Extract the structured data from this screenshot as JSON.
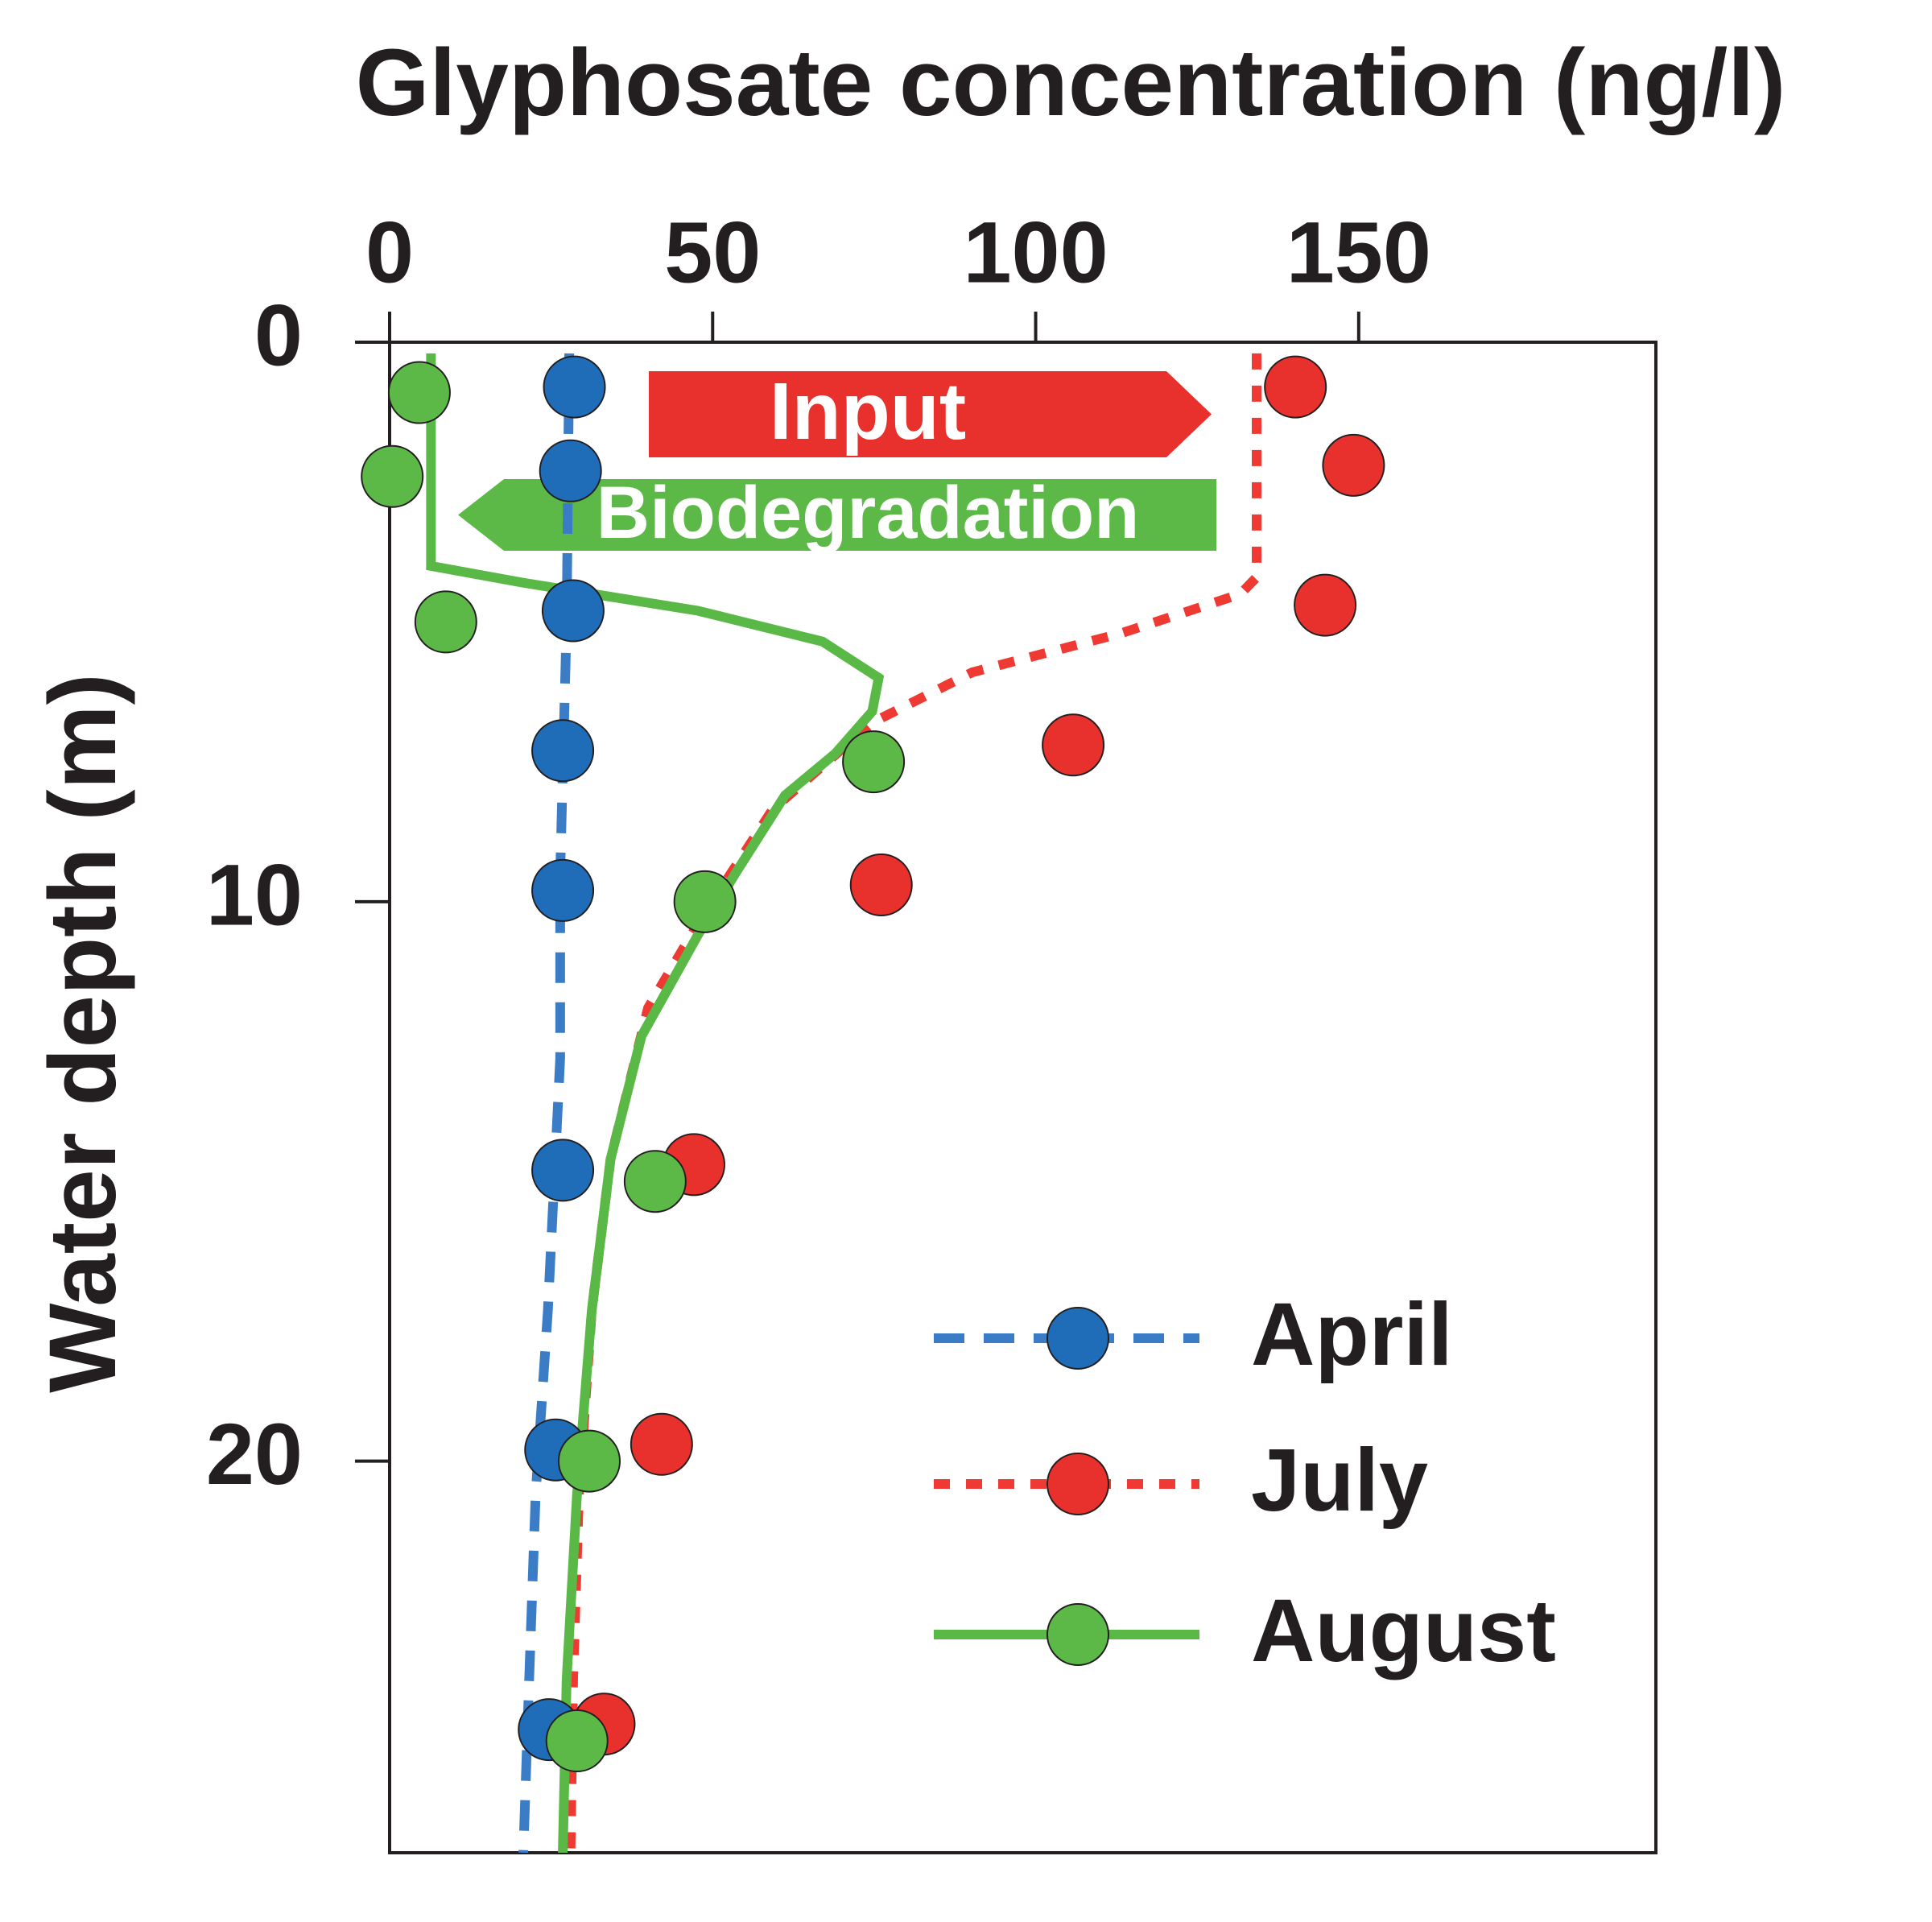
{
  "chart_data": {
    "type": "scatter-line",
    "title": "Glyphosate concentration (ng/l)",
    "y_label": "Water depth (m)",
    "xlim": [
      0,
      196
    ],
    "ylim": [
      0,
      27
    ],
    "xticks": [
      0,
      50,
      100,
      150
    ],
    "yticks": [
      0,
      10,
      20
    ],
    "x_axis_position": "top",
    "y_inverted": true,
    "grid": false,
    "legend": "lower right",
    "series": [
      {
        "name": "April",
        "color": "#1f6db8",
        "line_color": "#3a7cc6",
        "line_style": "dashed",
        "x": [
          28.6,
          28.0,
          28.4,
          26.8,
          26.8,
          26.8,
          25.7,
          24.7
        ],
        "y": [
          0.8,
          2.3,
          4.8,
          7.3,
          9.8,
          14.8,
          19.8,
          24.8
        ],
        "line_x": [
          27.8,
          27.4,
          26.4,
          26.4,
          24.5,
          22.6,
          21.6,
          20.7
        ],
        "line_y": [
          0.2,
          5.0,
          9.5,
          12.8,
          17.3,
          20.6,
          23.9,
          27
        ]
      },
      {
        "name": "July",
        "color": "#e8312c",
        "line_color": "#ee3a33",
        "line_style": "dotted",
        "x": [
          140.2,
          149.2,
          144.8,
          105.8,
          76.1,
          47.1,
          42.1,
          33.2
        ],
        "y": [
          0.8,
          2.2,
          4.7,
          7.2,
          9.7,
          14.7,
          19.7,
          24.7
        ],
        "line_x": [
          134.2,
          134.2,
          131.7,
          113.3,
          90.2,
          74.7,
          59.3,
          47.7,
          40.0,
          34.2,
          31.3,
          29.3,
          28.4,
          28.0
        ],
        "line_y": [
          0.2,
          4.2,
          4.5,
          5.2,
          5.9,
          6.8,
          8.35,
          10.4,
          11.9,
          14.6,
          17.3,
          20.6,
          23.9,
          27
        ]
      },
      {
        "name": "August",
        "color": "#5cb947",
        "line_color": "#5ab946",
        "line_style": "solid",
        "x": [
          4.6,
          0.4,
          8.7,
          74.9,
          48.8,
          41.1,
          30.9,
          29.0
        ],
        "y": [
          0.9,
          2.4,
          5.0,
          7.5,
          10.0,
          15.0,
          20.0,
          25.0
        ],
        "line_x": [
          6.4,
          6.4,
          20.7,
          47.7,
          67.0,
          75.7,
          74.7,
          69.0,
          61.2,
          53.5,
          47.7,
          39.0,
          34.2,
          31.3,
          29.0,
          27.4,
          26.8
        ],
        "line_y": [
          0.2,
          4.0,
          4.3,
          4.8,
          5.35,
          6.0,
          6.6,
          7.35,
          8.1,
          9.5,
          10.6,
          12.4,
          14.6,
          17.3,
          20.6,
          23.9,
          27
        ]
      }
    ],
    "annotations": [
      {
        "text": "Input",
        "color": "#e8312c",
        "direction": "right"
      },
      {
        "text": "Biodegradation",
        "color": "#5cb947",
        "direction": "left"
      }
    ]
  }
}
